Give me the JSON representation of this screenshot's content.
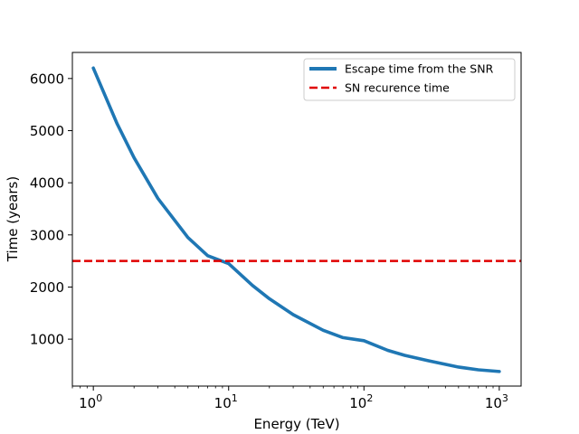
{
  "chart_data": {
    "type": "line",
    "title": "",
    "xlabel": "Energy (TeV)",
    "ylabel": "Time (years)",
    "xscale": "log",
    "xlim": [
      0.7,
      1450
    ],
    "ylim": [
      100,
      6500
    ],
    "x_ticks": [
      {
        "value": 1,
        "base": "10",
        "exp": "0"
      },
      {
        "value": 10,
        "base": "10",
        "exp": "1"
      },
      {
        "value": 100,
        "base": "10",
        "exp": "2"
      },
      {
        "value": 1000,
        "base": "10",
        "exp": "3"
      }
    ],
    "y_ticks": [
      1000,
      2000,
      3000,
      4000,
      5000,
      6000
    ],
    "series": [
      {
        "name": "Escape time from the SNR",
        "style": "solid",
        "color": "#1f77b4",
        "x": [
          1,
          1.5,
          2,
          3,
          5,
          7,
          10,
          15,
          20,
          30,
          50,
          70,
          100,
          150,
          200,
          300,
          500,
          700,
          1000
        ],
        "y": [
          6200,
          5130,
          4480,
          3700,
          2950,
          2600,
          2450,
          2030,
          1775,
          1470,
          1170,
          1030,
          970,
          785,
          690,
          585,
          465,
          412,
          380
        ]
      },
      {
        "name": "SN recurence time",
        "style": "dashed",
        "color": "#e00000",
        "x": [
          0.7,
          1450
        ],
        "y": [
          2500,
          2500
        ]
      }
    ],
    "legend": {
      "position": "top-right"
    }
  }
}
